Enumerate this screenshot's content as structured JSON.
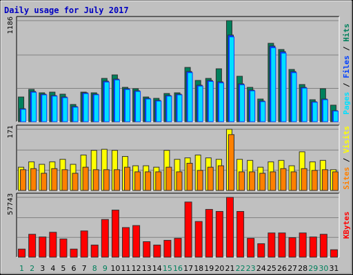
{
  "chart_data": [
    {
      "type": "bar",
      "title": "Daily usage for July 2017",
      "categories": [
        "1",
        "2",
        "3",
        "4",
        "5",
        "6",
        "7",
        "8",
        "9",
        "10",
        "11",
        "12",
        "13",
        "14",
        "15",
        "16",
        "17",
        "18",
        "19",
        "20",
        "21",
        "22",
        "23",
        "24",
        "25",
        "26",
        "27",
        "28",
        "29",
        "30",
        "31"
      ],
      "category_colors": [
        "#00805c",
        "#00805c",
        "#000000",
        "#000000",
        "#000000",
        "#000000",
        "#000000",
        "#00805c",
        "#00805c",
        "#000000",
        "#000000",
        "#000000",
        "#000000",
        "#000000",
        "#00805c",
        "#00805c",
        "#000000",
        "#000000",
        "#000000",
        "#000000",
        "#000000",
        "#00805c",
        "#00805c",
        "#000000",
        "#000000",
        "#000000",
        "#000000",
        "#000000",
        "#00805c",
        "#00805c",
        "#000000"
      ],
      "ylim": [
        0,
        1186
      ],
      "yticks": [
        1186
      ],
      "series": [
        {
          "name": "Hits",
          "color": "#00805c",
          "values": [
            290,
            379,
            339,
            347,
            323,
            202,
            347,
            339,
            508,
            549,
            403,
            387,
            290,
            274,
            331,
            339,
            637,
            484,
            508,
            621,
            1186,
            533,
            403,
            266,
            920,
            847,
            613,
            436,
            258,
            387,
            194
          ]
        },
        {
          "name": "Files",
          "color": "#0040ff",
          "values": [
            153,
            355,
            323,
            307,
            290,
            178,
            339,
            323,
            476,
            500,
            387,
            363,
            274,
            250,
            307,
            323,
            589,
            428,
            484,
            468,
            1017,
            444,
            371,
            242,
            888,
            823,
            589,
            403,
            234,
            266,
            129
          ]
        },
        {
          "name": "Pages",
          "color": "#00e0ff",
          "values": [
            145,
            345,
            315,
            300,
            282,
            170,
            330,
            316,
            465,
            490,
            378,
            355,
            266,
            242,
            300,
            315,
            575,
            418,
            472,
            455,
            995,
            433,
            362,
            235,
            868,
            805,
            575,
            394,
            228,
            258,
            124
          ]
        }
      ]
    },
    {
      "type": "bar",
      "ylim": [
        0,
        171
      ],
      "yticks": [
        171
      ],
      "series": [
        {
          "name": "Visits",
          "color": "#ffff00",
          "values": [
            65,
            80,
            73,
            80,
            87,
            73,
            99,
            112,
            115,
            112,
            95,
            69,
            69,
            65,
            112,
            87,
            91,
            99,
            91,
            87,
            171,
            87,
            84,
            65,
            80,
            84,
            69,
            108,
            80,
            84,
            58
          ]
        },
        {
          "name": "Sites",
          "color": "#ff8000",
          "values": [
            58,
            61,
            48,
            61,
            58,
            48,
            65,
            58,
            58,
            58,
            65,
            52,
            52,
            52,
            65,
            52,
            76,
            56,
            65,
            69,
            156,
            52,
            52,
            48,
            52,
            61,
            52,
            61,
            56,
            58,
            52
          ]
        }
      ]
    },
    {
      "type": "bar",
      "ylim": [
        0,
        57743
      ],
      "yticks": [
        57743
      ],
      "series": [
        {
          "name": "KBytes",
          "color": "#ff0000",
          "values": [
            7790,
            22070,
            19470,
            24010,
            17520,
            7790,
            25310,
            11680,
            36340,
            45430,
            28560,
            30500,
            14930,
            11680,
            16230,
            18170,
            53210,
            34400,
            46080,
            44130,
            57743,
            44130,
            18170,
            12980,
            23360,
            23360,
            18820,
            23360,
            19470,
            22070,
            7140
          ]
        }
      ]
    }
  ]
}
